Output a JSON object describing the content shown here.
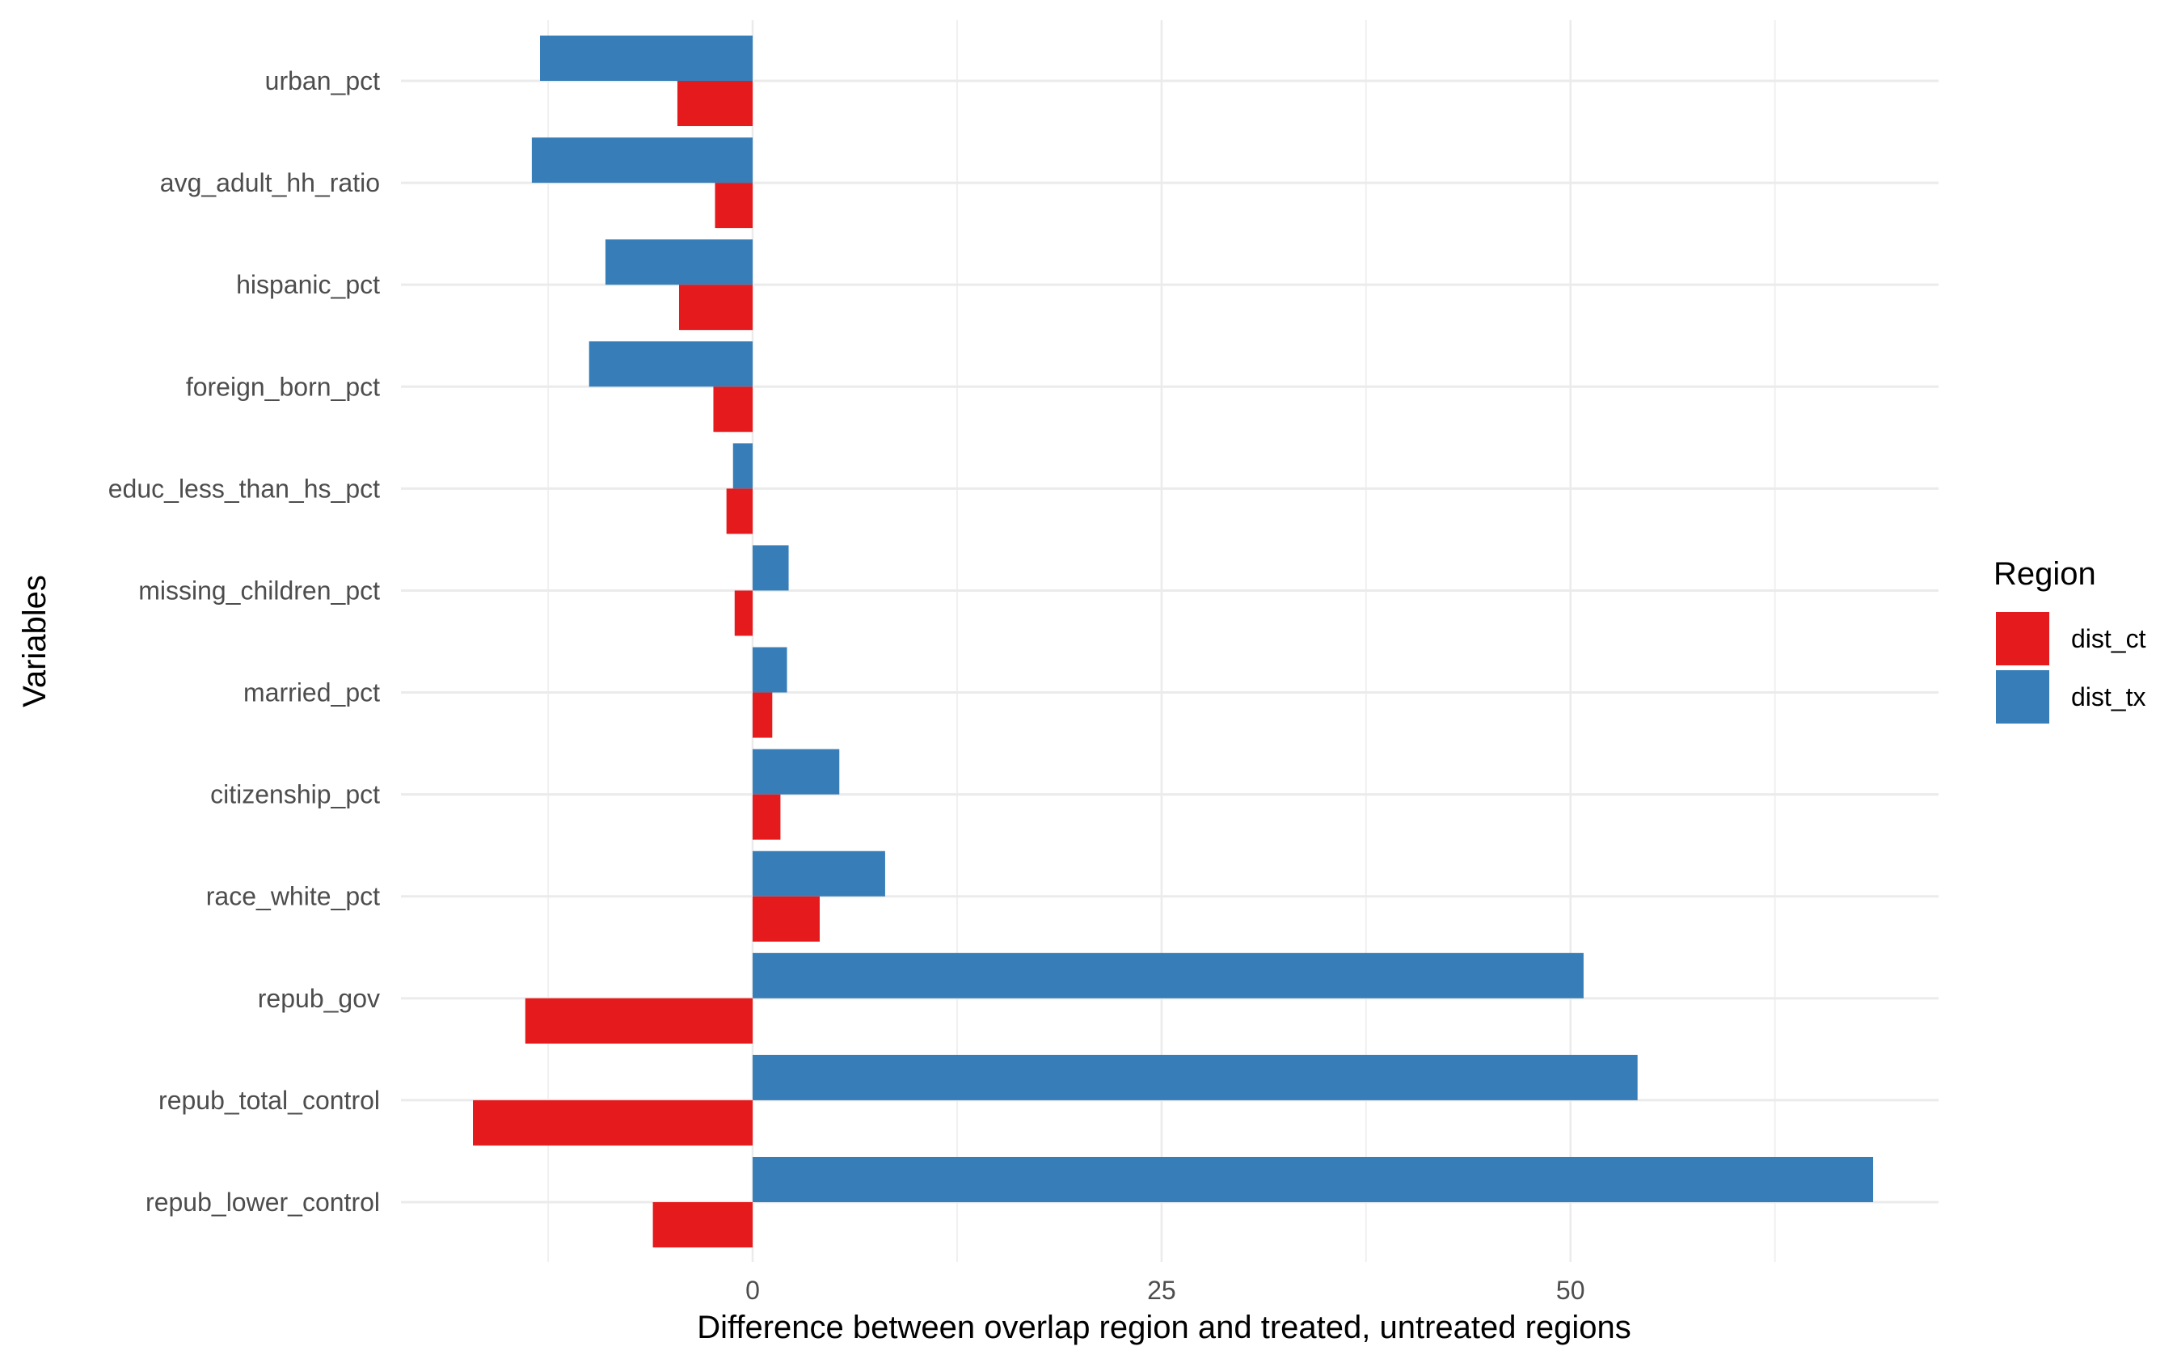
{
  "chart_data": {
    "type": "bar",
    "orientation": "horizontal",
    "xlabel": "Difference between overlap region and treated, untreated regions",
    "ylabel": "Variables",
    "xlim": [
      -21.5,
      72.5
    ],
    "xticks": [
      0,
      25,
      50
    ],
    "grid": true,
    "categories": [
      "urban_pct",
      "avg_adult_hh_ratio",
      "hispanic_pct",
      "foreign_born_pct",
      "educ_less_than_hs_pct",
      "missing_children_pct",
      "married_pct",
      "citizenship_pct",
      "race_white_pct",
      "repub_gov",
      "repub_total_control",
      "repub_lower_control"
    ],
    "series": [
      {
        "name": "dist_tx",
        "color": "#377EB8",
        "values": [
          -13.0,
          -13.5,
          -9.0,
          -10.0,
          -1.2,
          2.2,
          2.1,
          5.3,
          8.1,
          50.8,
          54.1,
          68.5
        ]
      },
      {
        "name": "dist_ct",
        "color": "#E41A1C",
        "values": [
          -4.6,
          -2.3,
          -4.5,
          -2.4,
          -1.6,
          -1.1,
          1.2,
          1.7,
          4.1,
          -13.9,
          -17.1,
          -6.1
        ]
      }
    ],
    "legend": {
      "title": "Region",
      "position": "right",
      "entries": [
        {
          "name": "dist_ct",
          "color": "#E41A1C"
        },
        {
          "name": "dist_tx",
          "color": "#377EB8"
        }
      ]
    }
  }
}
